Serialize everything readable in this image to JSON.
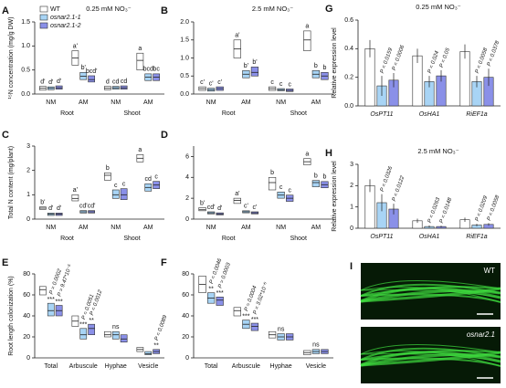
{
  "chart_data": [
    {
      "type": "box",
      "letter": "A",
      "title": "0.25 mM NO₃⁻",
      "ylabel": "¹⁵N concentration (mg/g DW)",
      "legend": true,
      "groups": [
        "Root",
        "Shoot"
      ],
      "categories": [
        "NM",
        "AM",
        "NM",
        "AM"
      ],
      "ylim": [
        0,
        1.5
      ],
      "yticks": [
        {
          "value": 0,
          "label": "0.0"
        },
        0.5,
        {
          "value": 1,
          "label": "1.0"
        },
        1.5
      ],
      "series": [
        {
          "name": "WT",
          "color": "#ffffff",
          "values": [
            0.12,
            0.75,
            0.12,
            0.7
          ],
          "q1": [
            0.08,
            0.6,
            0.09,
            0.5
          ],
          "q3": [
            0.16,
            0.9,
            0.16,
            0.85
          ],
          "labels": [
            "d'",
            "a'",
            "d",
            "a"
          ]
        },
        {
          "name": "osnar2.1-1",
          "color": "#a8d4f5",
          "values": [
            0.12,
            0.37,
            0.13,
            0.35
          ],
          "q1": [
            0.09,
            0.3,
            0.1,
            0.28
          ],
          "q3": [
            0.15,
            0.45,
            0.16,
            0.42
          ],
          "labels": [
            "d'",
            "b'",
            "cd",
            "bcd"
          ]
        },
        {
          "name": "osnar2.1-2",
          "color": "#8a90e8",
          "values": [
            0.13,
            0.3,
            0.13,
            0.35
          ],
          "q1": [
            0.1,
            0.25,
            0.1,
            0.28
          ],
          "q3": [
            0.17,
            0.38,
            0.17,
            0.42
          ],
          "labels": [
            "d'",
            "bcd'",
            "cd",
            "bc"
          ]
        }
      ]
    },
    {
      "type": "box",
      "letter": "B",
      "title": "2.5 mM NO₃⁻",
      "groups": [
        "Root",
        "Shoot"
      ],
      "categories": [
        "NM",
        "AM",
        "NM",
        "AM"
      ],
      "ylim": [
        0,
        2
      ],
      "yticks": [
        {
          "value": 0,
          "label": "0.0"
        },
        0.5,
        {
          "value": 1,
          "label": "1.0"
        },
        1.5,
        {
          "value": 2,
          "label": "2.0"
        }
      ],
      "series": [
        {
          "color": "#ffffff",
          "values": [
            0.15,
            1.25,
            0.15,
            1.5
          ],
          "q1": [
            0.1,
            1.0,
            0.1,
            1.2
          ],
          "q3": [
            0.2,
            1.5,
            0.2,
            1.75
          ],
          "labels": [
            "c'",
            "a'",
            "c",
            "a"
          ]
        },
        {
          "color": "#a8d4f5",
          "values": [
            0.12,
            0.55,
            0.12,
            0.55
          ],
          "q1": [
            0.08,
            0.45,
            0.09,
            0.45
          ],
          "q3": [
            0.16,
            0.65,
            0.15,
            0.65
          ],
          "labels": [
            "c'",
            "b'",
            "c",
            "b"
          ]
        },
        {
          "color": "#8a90e8",
          "values": [
            0.15,
            0.6,
            0.1,
            0.5
          ],
          "q1": [
            0.1,
            0.5,
            0.07,
            0.4
          ],
          "q3": [
            0.2,
            0.75,
            0.14,
            0.6
          ],
          "labels": [
            "c'",
            "b'",
            "c",
            "b"
          ]
        }
      ]
    },
    {
      "type": "box",
      "letter": "C",
      "ylabel": "Total N content (mg/plant)",
      "groups": [
        "Root",
        "Shoot"
      ],
      "categories": [
        "NM",
        "AM",
        "NM",
        "AM"
      ],
      "ylim": [
        0,
        3
      ],
      "yticks": [
        0,
        1,
        2,
        3
      ],
      "series": [
        {
          "color": "#ffffff",
          "values": [
            0.45,
            0.85,
            1.8,
            2.5
          ],
          "q1": [
            0.4,
            0.75,
            1.6,
            2.35
          ],
          "q3": [
            0.5,
            1.0,
            1.9,
            2.65
          ],
          "labels": [
            "b'",
            "a'",
            "b",
            "a"
          ]
        },
        {
          "color": "#a8d4f5",
          "values": [
            0.2,
            0.3,
            1.0,
            1.3
          ],
          "q1": [
            0.15,
            0.25,
            0.85,
            1.15
          ],
          "q3": [
            0.25,
            0.35,
            1.2,
            1.45
          ],
          "labels": [
            "d'",
            "cd'",
            "c",
            "cd"
          ]
        },
        {
          "color": "#8a90e8",
          "values": [
            0.2,
            0.3,
            1.0,
            1.4
          ],
          "q1": [
            0.15,
            0.25,
            0.8,
            1.25
          ],
          "q3": [
            0.25,
            0.35,
            1.25,
            1.55
          ],
          "labels": [
            "d'",
            "cd'",
            "c",
            "c"
          ]
        }
      ]
    },
    {
      "type": "box",
      "letter": "D",
      "groups": [
        "Root",
        "Shoot"
      ],
      "categories": [
        "NM",
        "AM",
        "NM",
        "AM"
      ],
      "ylim": [
        0,
        7
      ],
      "yticks": [
        0,
        2,
        4,
        6
      ],
      "series": [
        {
          "color": "#ffffff",
          "values": [
            0.9,
            1.8,
            3.5,
            5.5
          ],
          "q1": [
            0.8,
            1.5,
            2.8,
            5.2
          ],
          "q3": [
            1.1,
            2.0,
            4.0,
            5.8
          ],
          "labels": [
            "b'",
            "a'",
            "b",
            "a"
          ]
        },
        {
          "color": "#a8d4f5",
          "values": [
            0.6,
            0.7,
            2.3,
            3.5
          ],
          "q1": [
            0.5,
            0.6,
            2.0,
            3.1
          ],
          "q3": [
            0.7,
            0.8,
            2.6,
            3.7
          ],
          "labels": [
            "cd'",
            "c'",
            "c",
            "b"
          ]
        },
        {
          "color": "#8a90e8",
          "values": [
            0.5,
            0.6,
            2.0,
            3.3
          ],
          "q1": [
            0.4,
            0.5,
            1.7,
            3.0
          ],
          "q3": [
            0.6,
            0.7,
            2.3,
            3.6
          ],
          "labels": [
            "d'",
            "c'",
            "c",
            "b"
          ]
        }
      ]
    },
    {
      "type": "box",
      "letter": "E",
      "ylabel": "Root length colonization (%)",
      "categories": [
        "Total",
        "Arbuscule",
        "Hyphae",
        "Vesicle"
      ],
      "ylim": [
        0,
        80
      ],
      "yticks": [
        0,
        20,
        40,
        60,
        80
      ],
      "series": [
        {
          "color": "#ffffff",
          "values": [
            65,
            35,
            22,
            8
          ],
          "q1": [
            60,
            30,
            20,
            6
          ],
          "q3": [
            68,
            40,
            25,
            10
          ]
        },
        {
          "color": "#a8d4f5",
          "values": [
            45,
            22,
            22,
            4
          ],
          "q1": [
            40,
            18,
            18,
            3
          ],
          "q3": [
            52,
            28,
            25,
            6
          ],
          "labels": [
            "P = 0.0002",
            "P = 0.0051",
            "ns",
            null
          ],
          "stars": [
            "***",
            "***",
            null,
            null
          ]
        },
        {
          "color": "#8a90e8",
          "values": [
            45,
            28,
            18,
            6
          ],
          "q1": [
            40,
            22,
            15,
            4
          ],
          "q3": [
            50,
            32,
            22,
            8
          ],
          "labels": [
            "P = 9.47*10⁻⁵",
            "P = 0.0012",
            null,
            "P = 0.0089"
          ],
          "stars": [
            "***",
            "**",
            null,
            "**"
          ]
        }
      ]
    },
    {
      "type": "box",
      "letter": "F",
      "categories": [
        "Total",
        "Arbuscule",
        "Hyphae",
        "Vesicle"
      ],
      "ylim": [
        0,
        80
      ],
      "yticks": [
        0,
        20,
        40,
        60,
        80
      ],
      "series": [
        {
          "color": "#ffffff",
          "values": [
            70,
            45,
            22,
            5
          ],
          "q1": [
            62,
            40,
            19,
            3
          ],
          "q3": [
            78,
            48,
            25,
            7
          ]
        },
        {
          "color": "#a8d4f5",
          "values": [
            57,
            32,
            20,
            6
          ],
          "q1": [
            52,
            28,
            17,
            4
          ],
          "q3": [
            62,
            36,
            23,
            8
          ],
          "labels": [
            "P = 0.0046",
            "P = 0.0004",
            "ns",
            "ns"
          ],
          "stars": [
            "**",
            "***",
            null,
            null
          ]
        },
        {
          "color": "#8a90e8",
          "values": [
            55,
            30,
            20,
            6
          ],
          "q1": [
            50,
            26,
            17,
            4
          ],
          "q3": [
            58,
            33,
            23,
            8
          ],
          "labels": [
            "P = 0.0003",
            "P = 3.02*10⁻⁵",
            null,
            null
          ],
          "stars": [
            "***",
            "***",
            null,
            null
          ]
        }
      ]
    },
    {
      "type": "bar",
      "letter": "G",
      "title": "0.25 mM NO₃⁻",
      "ylabel": "Relative expression level",
      "categories": [
        "OsPT11",
        "OsHA1",
        "RiEF1a"
      ],
      "ylim": [
        0,
        0.6
      ],
      "yticks": [
        {
          "value": 0,
          "label": "0.0"
        },
        0.2,
        0.4,
        0.6
      ],
      "series": [
        {
          "color": "#ffffff",
          "values": [
            0.4,
            0.35,
            0.38
          ],
          "errors": [
            0.06,
            0.05,
            0.05
          ]
        },
        {
          "color": "#a8d4f5",
          "values": [
            0.14,
            0.17,
            0.17
          ],
          "errors": [
            0.07,
            0.04,
            0.04
          ],
          "labels": [
            "P = 0.0159",
            "P = 0.024",
            "P = 0.0058"
          ]
        },
        {
          "color": "#8a90e8",
          "values": [
            0.18,
            0.21,
            0.2
          ],
          "errors": [
            0.05,
            0.04,
            0.06
          ],
          "labels": [
            "P = 0.0006",
            "P = 0.05",
            "P = 0.0378"
          ]
        }
      ]
    },
    {
      "type": "bar",
      "letter": "H",
      "title": "2.5 mM NO₃⁻",
      "ylabel": "Relative expression level",
      "categories": [
        "OsPT11",
        "OsHA1",
        "RiEF1a"
      ],
      "ylim": [
        0,
        3
      ],
      "yticks": [
        0,
        1,
        2,
        3
      ],
      "series": [
        {
          "color": "#ffffff",
          "values": [
            2.0,
            0.35,
            0.4
          ],
          "errors": [
            0.3,
            0.1,
            0.1
          ]
        },
        {
          "color": "#a8d4f5",
          "values": [
            1.2,
            0.08,
            0.15
          ],
          "errors": [
            0.4,
            0.05,
            0.06
          ],
          "labels": [
            "P = 0.0326",
            "P = 0.0263",
            "P = 0.0209"
          ]
        },
        {
          "color": "#8a90e8",
          "values": [
            0.9,
            0.08,
            0.18
          ],
          "errors": [
            0.25,
            0.04,
            0.06
          ],
          "labels": [
            "P = 0.0122",
            "P = 0.0148",
            "P = 0.0058"
          ]
        }
      ]
    },
    {
      "type": "image",
      "letter": "I",
      "panels": [
        "WT",
        "osnar2.1"
      ]
    }
  ]
}
